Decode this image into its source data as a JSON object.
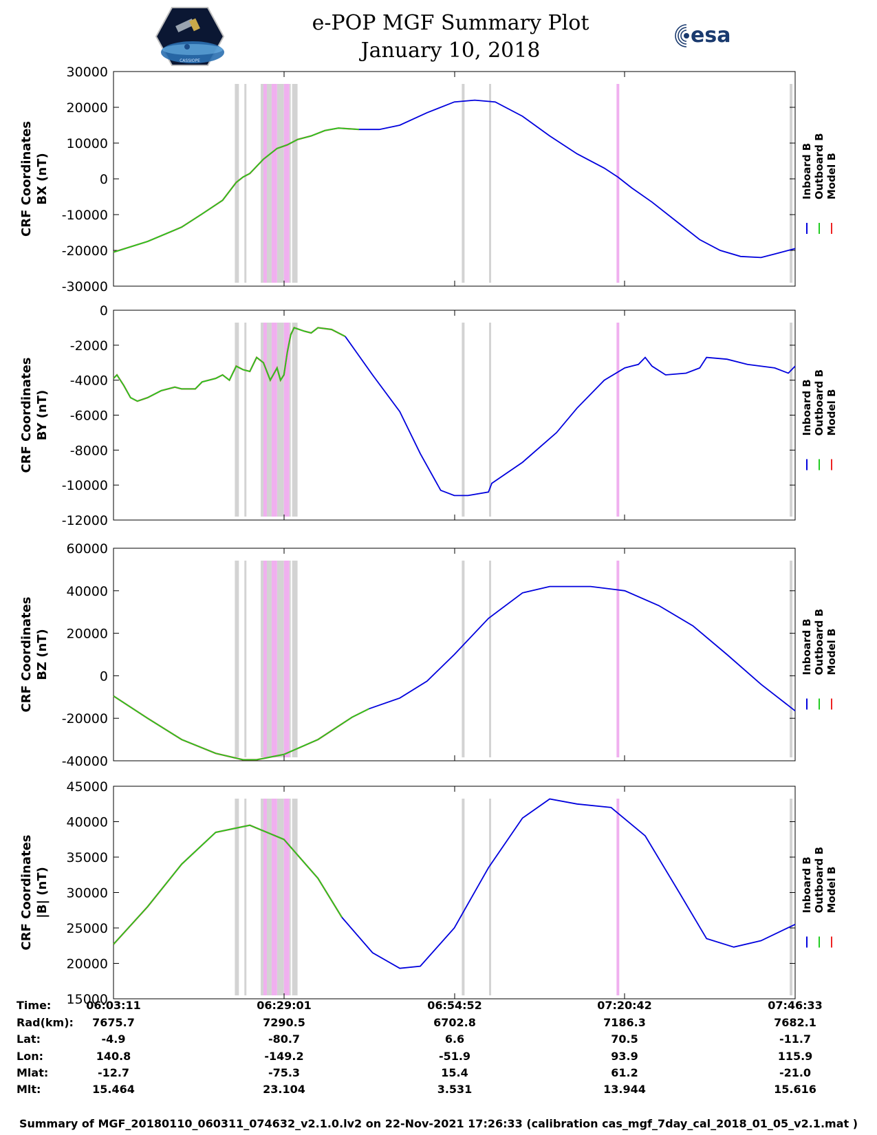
{
  "title": {
    "line1": "e-POP MGF Summary Plot",
    "line2": "January 10, 2018"
  },
  "logos": {
    "left_text": "CASSIOPE",
    "right_text": "esa"
  },
  "legend": {
    "labels": [
      "Inboard B",
      "Outboard B",
      "Model B"
    ],
    "colors": [
      "#0000dd",
      "#22cc22",
      "#ee2222"
    ]
  },
  "colors": {
    "inboard": "#0000dd",
    "outboard": "#22cc22",
    "model": "#ee2222",
    "gap_gray": "#d3d3d3",
    "gap_pink": "#f0b0ef"
  },
  "chart_data": [
    {
      "type": "line",
      "id": "bx",
      "ylabel": [
        "CRF Coordinates",
        "BX (nT)"
      ],
      "ylim": [
        -30000,
        30000
      ],
      "yticks": [
        -30000,
        -20000,
        -10000,
        0,
        10000,
        20000,
        30000
      ],
      "xlim": [
        0,
        1
      ],
      "switch_x": 0.36,
      "points": [
        [
          0,
          -20500
        ],
        [
          0.05,
          -17500
        ],
        [
          0.1,
          -13500
        ],
        [
          0.13,
          -9800
        ],
        [
          0.16,
          -6000
        ],
        [
          0.18,
          -1000
        ],
        [
          0.19,
          500
        ],
        [
          0.2,
          1500
        ],
        [
          0.22,
          5500
        ],
        [
          0.24,
          8500
        ],
        [
          0.255,
          9500
        ],
        [
          0.27,
          11000
        ],
        [
          0.29,
          12000
        ],
        [
          0.31,
          13500
        ],
        [
          0.33,
          14200
        ],
        [
          0.36,
          13800
        ],
        [
          0.39,
          13800
        ],
        [
          0.42,
          15000
        ],
        [
          0.46,
          18500
        ],
        [
          0.5,
          21500
        ],
        [
          0.53,
          22000
        ],
        [
          0.56,
          21500
        ],
        [
          0.6,
          17500
        ],
        [
          0.64,
          12000
        ],
        [
          0.68,
          7000
        ],
        [
          0.72,
          3000
        ],
        [
          0.74,
          500
        ],
        [
          0.76,
          -2500
        ],
        [
          0.79,
          -6500
        ],
        [
          0.83,
          -12500
        ],
        [
          0.86,
          -17000
        ],
        [
          0.89,
          -20000
        ],
        [
          0.92,
          -21700
        ],
        [
          0.95,
          -22000
        ],
        [
          0.97,
          -21000
        ],
        [
          1.0,
          -19500
        ]
      ]
    },
    {
      "type": "line",
      "id": "by",
      "ylabel": [
        "CRF Coordinates",
        "BY (nT)"
      ],
      "ylim": [
        -12000,
        0
      ],
      "yticks": [
        -12000,
        -10000,
        -8000,
        -6000,
        -4000,
        -2000,
        0
      ],
      "xlim": [
        0,
        1
      ],
      "switch_x": 0.34,
      "points": [
        [
          0,
          -3900
        ],
        [
          0.005,
          -3700
        ],
        [
          0.015,
          -4300
        ],
        [
          0.025,
          -5000
        ],
        [
          0.035,
          -5200
        ],
        [
          0.05,
          -5000
        ],
        [
          0.07,
          -4600
        ],
        [
          0.09,
          -4400
        ],
        [
          0.1,
          -4500
        ],
        [
          0.12,
          -4500
        ],
        [
          0.13,
          -4100
        ],
        [
          0.15,
          -3900
        ],
        [
          0.16,
          -3700
        ],
        [
          0.17,
          -4000
        ],
        [
          0.18,
          -3200
        ],
        [
          0.19,
          -3400
        ],
        [
          0.2,
          -3500
        ],
        [
          0.21,
          -2700
        ],
        [
          0.22,
          -3000
        ],
        [
          0.23,
          -4000
        ],
        [
          0.24,
          -3300
        ],
        [
          0.245,
          -4000
        ],
        [
          0.25,
          -3700
        ],
        [
          0.255,
          -2400
        ],
        [
          0.26,
          -1400
        ],
        [
          0.265,
          -1000
        ],
        [
          0.28,
          -1200
        ],
        [
          0.29,
          -1300
        ],
        [
          0.3,
          -1000
        ],
        [
          0.32,
          -1100
        ],
        [
          0.34,
          -1500
        ],
        [
          0.38,
          -3700
        ],
        [
          0.42,
          -5800
        ],
        [
          0.45,
          -8200
        ],
        [
          0.48,
          -10300
        ],
        [
          0.5,
          -10600
        ],
        [
          0.52,
          -10600
        ],
        [
          0.55,
          -10400
        ],
        [
          0.555,
          -9900
        ],
        [
          0.6,
          -8700
        ],
        [
          0.65,
          -7000
        ],
        [
          0.68,
          -5600
        ],
        [
          0.72,
          -4000
        ],
        [
          0.75,
          -3300
        ],
        [
          0.76,
          -3200
        ],
        [
          0.77,
          -3100
        ],
        [
          0.78,
          -2700
        ],
        [
          0.79,
          -3200
        ],
        [
          0.81,
          -3700
        ],
        [
          0.84,
          -3600
        ],
        [
          0.86,
          -3300
        ],
        [
          0.87,
          -2700
        ],
        [
          0.9,
          -2800
        ],
        [
          0.93,
          -3100
        ],
        [
          0.97,
          -3300
        ],
        [
          0.99,
          -3600
        ],
        [
          1.0,
          -3200
        ]
      ]
    },
    {
      "type": "line",
      "id": "bz",
      "ylabel": [
        "CRF Coordinates",
        "BZ (nT)"
      ],
      "ylim": [
        -40000,
        60000
      ],
      "yticks": [
        -40000,
        -20000,
        0,
        20000,
        40000,
        60000
      ],
      "xlim": [
        0,
        1
      ],
      "switch_x": 0.375,
      "points": [
        [
          0,
          -9500
        ],
        [
          0.05,
          -20000
        ],
        [
          0.1,
          -30000
        ],
        [
          0.15,
          -36500
        ],
        [
          0.19,
          -39500
        ],
        [
          0.21,
          -39500
        ],
        [
          0.25,
          -37000
        ],
        [
          0.3,
          -30000
        ],
        [
          0.35,
          -19500
        ],
        [
          0.375,
          -15500
        ],
        [
          0.42,
          -10500
        ],
        [
          0.46,
          -2500
        ],
        [
          0.5,
          10000
        ],
        [
          0.55,
          27000
        ],
        [
          0.6,
          39000
        ],
        [
          0.64,
          42000
        ],
        [
          0.7,
          42000
        ],
        [
          0.75,
          40000
        ],
        [
          0.8,
          33000
        ],
        [
          0.85,
          23500
        ],
        [
          0.9,
          10000
        ],
        [
          0.95,
          -4000
        ],
        [
          1.0,
          -16500
        ]
      ]
    },
    {
      "type": "line",
      "id": "bmag",
      "ylabel": [
        "CRF Coordinates",
        "|B| (nT)"
      ],
      "ylim": [
        15000,
        45000
      ],
      "yticks": [
        15000,
        20000,
        25000,
        30000,
        35000,
        40000,
        45000
      ],
      "xlim": [
        0,
        1
      ],
      "switch_x": 0.335,
      "points": [
        [
          0,
          22700
        ],
        [
          0.05,
          28000
        ],
        [
          0.1,
          34000
        ],
        [
          0.15,
          38500
        ],
        [
          0.2,
          39500
        ],
        [
          0.25,
          37500
        ],
        [
          0.3,
          32000
        ],
        [
          0.335,
          26500
        ],
        [
          0.38,
          21500
        ],
        [
          0.42,
          19300
        ],
        [
          0.45,
          19600
        ],
        [
          0.5,
          25000
        ],
        [
          0.55,
          33500
        ],
        [
          0.6,
          40500
        ],
        [
          0.64,
          43200
        ],
        [
          0.68,
          42500
        ],
        [
          0.73,
          42000
        ],
        [
          0.78,
          38000
        ],
        [
          0.83,
          30000
        ],
        [
          0.87,
          23500
        ],
        [
          0.91,
          22300
        ],
        [
          0.95,
          23200
        ],
        [
          1.0,
          25500
        ]
      ]
    }
  ],
  "gap_bands_gray": [
    [
      0.178,
      0.184
    ],
    [
      0.192,
      0.195
    ],
    [
      0.216,
      0.22
    ],
    [
      0.225,
      0.232
    ],
    [
      0.24,
      0.25
    ],
    [
      0.258,
      0.26
    ],
    [
      0.262,
      0.27
    ],
    [
      0.511,
      0.515
    ],
    [
      0.551,
      0.554
    ],
    [
      0.992,
      0.996
    ]
  ],
  "gap_bands_pink": [
    [
      0.22,
      0.225
    ],
    [
      0.232,
      0.24
    ],
    [
      0.25,
      0.258
    ],
    [
      0.738,
      0.742
    ]
  ],
  "table": {
    "row_labels": [
      "Time:",
      "Rad(km):",
      "Lat:",
      "Lon:",
      "Mlat:",
      "Mlt:"
    ],
    "columns": [
      {
        "values": [
          "06:03:11",
          "7675.7",
          "-4.9",
          "140.8",
          "-12.7",
          "15.464"
        ]
      },
      {
        "values": [
          "06:29:01",
          "7290.5",
          "-80.7",
          "-149.2",
          "-75.3",
          "23.104"
        ]
      },
      {
        "values": [
          "06:54:52",
          "6702.8",
          "6.6",
          "-51.9",
          "15.4",
          "3.531"
        ]
      },
      {
        "values": [
          "07:20:42",
          "7186.3",
          "70.5",
          "93.9",
          "61.2",
          "13.944"
        ]
      },
      {
        "values": [
          "07:46:33",
          "7682.1",
          "-11.7",
          "115.9",
          "-21.0",
          "15.616"
        ]
      }
    ]
  },
  "footer": "Summary of MGF_20180110_060311_074632_v2.1.0.lv2 on 22-Nov-2021 17:26:33 (calibration cas_mgf_7day_cal_2018_01_05_v2.1.mat )"
}
